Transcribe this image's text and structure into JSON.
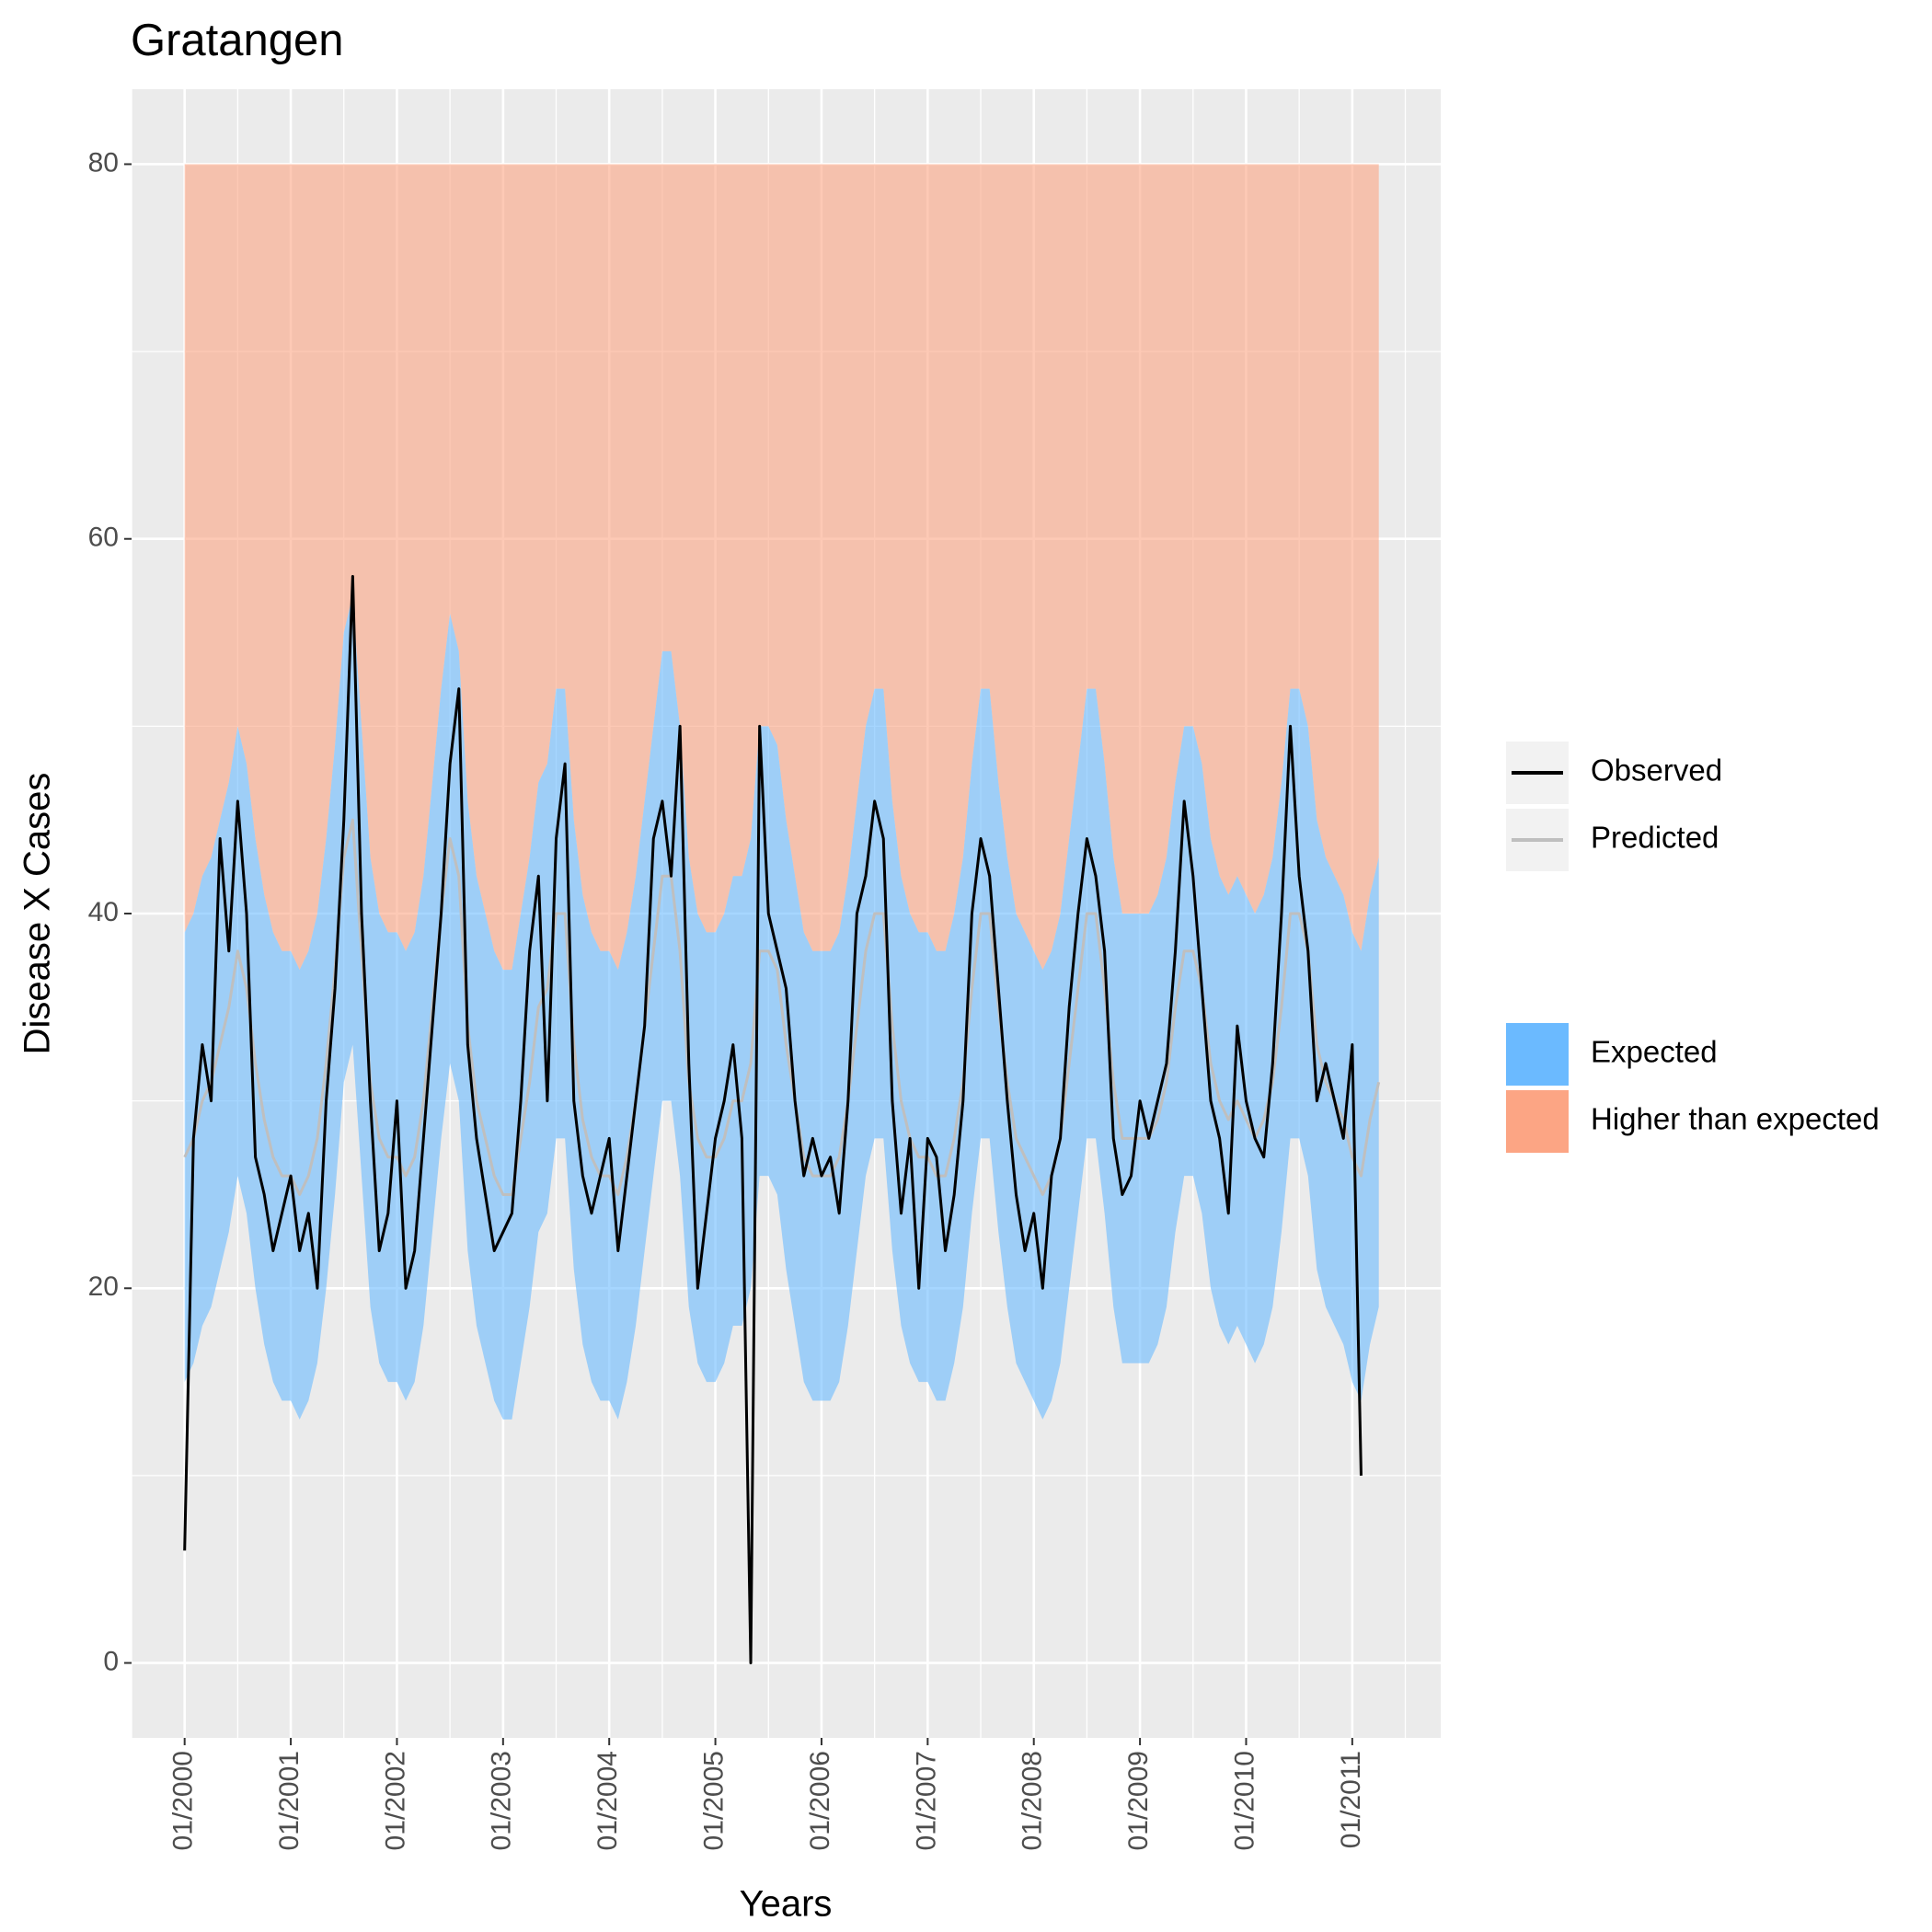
{
  "chart_data": {
    "type": "line",
    "title": "Gratangen",
    "xlabel": "Years",
    "ylabel": "Disease X Cases",
    "x": [
      "2000-01",
      "2000-02",
      "2000-03",
      "2000-04",
      "2000-05",
      "2000-06",
      "2000-07",
      "2000-08",
      "2000-09",
      "2000-10",
      "2000-11",
      "2000-12",
      "2001-01",
      "2001-02",
      "2001-03",
      "2001-04",
      "2001-05",
      "2001-06",
      "2001-07",
      "2001-08",
      "2001-09",
      "2001-10",
      "2001-11",
      "2001-12",
      "2002-01",
      "2002-02",
      "2002-03",
      "2002-04",
      "2002-05",
      "2002-06",
      "2002-07",
      "2002-08",
      "2002-09",
      "2002-10",
      "2002-11",
      "2002-12",
      "2003-01",
      "2003-02",
      "2003-03",
      "2003-04",
      "2003-05",
      "2003-06",
      "2003-07",
      "2003-08",
      "2003-09",
      "2003-10",
      "2003-11",
      "2003-12",
      "2004-01",
      "2004-02",
      "2004-03",
      "2004-04",
      "2004-05",
      "2004-06",
      "2004-07",
      "2004-08",
      "2004-09",
      "2004-10",
      "2004-11",
      "2004-12",
      "2005-01",
      "2005-02",
      "2005-03",
      "2005-04",
      "2005-05",
      "2005-06",
      "2005-07",
      "2005-08",
      "2005-09",
      "2005-10",
      "2005-11",
      "2005-12",
      "2006-01",
      "2006-02",
      "2006-03",
      "2006-04",
      "2006-05",
      "2006-06",
      "2006-07",
      "2006-08",
      "2006-09",
      "2006-10",
      "2006-11",
      "2006-12",
      "2007-01",
      "2007-02",
      "2007-03",
      "2007-04",
      "2007-05",
      "2007-06",
      "2007-07",
      "2007-08",
      "2007-09",
      "2007-10",
      "2007-11",
      "2007-12",
      "2008-01",
      "2008-02",
      "2008-03",
      "2008-04",
      "2008-05",
      "2008-06",
      "2008-07",
      "2008-08",
      "2008-09",
      "2008-10",
      "2008-11",
      "2008-12",
      "2009-01",
      "2009-02",
      "2009-03",
      "2009-04",
      "2009-05",
      "2009-06",
      "2009-07",
      "2009-08",
      "2009-09",
      "2009-10",
      "2009-11",
      "2009-12",
      "2010-01",
      "2010-02",
      "2010-03",
      "2010-04",
      "2010-05",
      "2010-06",
      "2010-07",
      "2010-08",
      "2010-09",
      "2010-10",
      "2010-11",
      "2010-12",
      "2011-01",
      "2011-02",
      "2011-03",
      "2011-04"
    ],
    "series": [
      {
        "name": "Observed",
        "color": "#000000",
        "values": [
          6,
          28,
          33,
          30,
          44,
          38,
          46,
          40,
          27,
          25,
          22,
          24,
          26,
          22,
          24,
          20,
          30,
          36,
          45,
          58,
          40,
          30,
          22,
          24,
          30,
          20,
          22,
          28,
          34,
          40,
          48,
          52,
          33,
          28,
          25,
          22,
          23,
          24,
          30,
          38,
          42,
          30,
          44,
          48,
          30,
          26,
          24,
          26,
          28,
          22,
          26,
          30,
          34,
          44,
          46,
          42,
          50,
          32,
          20,
          24,
          28,
          30,
          33,
          28,
          0,
          50,
          40,
          38,
          36,
          30,
          26,
          28,
          26,
          27,
          24,
          30,
          40,
          42,
          46,
          44,
          30,
          24,
          28,
          20,
          28,
          27,
          22,
          25,
          30,
          40,
          44,
          42,
          36,
          30,
          25,
          22,
          24,
          20,
          26,
          28,
          35,
          40,
          44,
          42,
          38,
          28,
          25,
          26,
          30,
          28,
          30,
          32,
          38,
          46,
          42,
          36,
          30,
          28,
          24,
          34,
          30,
          28,
          27,
          32,
          40,
          50,
          42,
          38,
          30,
          32,
          30,
          28,
          33,
          10,
          null,
          null
        ]
      },
      {
        "name": "Predicted",
        "color": "#bfbfbf",
        "values": [
          27,
          28,
          30,
          31,
          33,
          35,
          38,
          36,
          32,
          29,
          27,
          26,
          26,
          25,
          26,
          28,
          32,
          37,
          43,
          45,
          38,
          31,
          28,
          27,
          27,
          26,
          27,
          30,
          35,
          40,
          44,
          42,
          34,
          30,
          28,
          26,
          25,
          25,
          28,
          31,
          35,
          36,
          40,
          40,
          33,
          29,
          27,
          26,
          26,
          25,
          27,
          30,
          34,
          38,
          42,
          42,
          38,
          31,
          28,
          27,
          27,
          28,
          30,
          30,
          32,
          38,
          38,
          37,
          33,
          30,
          27,
          26,
          26,
          26,
          27,
          30,
          34,
          38,
          40,
          40,
          34,
          30,
          28,
          27,
          27,
          26,
          26,
          28,
          31,
          36,
          40,
          40,
          35,
          31,
          28,
          27,
          26,
          25,
          26,
          28,
          32,
          36,
          40,
          40,
          36,
          31,
          28,
          28,
          28,
          28,
          29,
          31,
          35,
          38,
          38,
          36,
          32,
          30,
          29,
          30,
          29,
          28,
          29,
          31,
          35,
          40,
          40,
          38,
          33,
          31,
          30,
          29,
          27,
          26,
          29,
          31
        ]
      },
      {
        "name": "Expected",
        "color": "#6bbaff",
        "lower": [
          15,
          16,
          18,
          19,
          21,
          23,
          26,
          24,
          20,
          17,
          15,
          14,
          14,
          13,
          14,
          16,
          20,
          25,
          31,
          33,
          26,
          19,
          16,
          15,
          15,
          14,
          15,
          18,
          23,
          28,
          32,
          30,
          22,
          18,
          16,
          14,
          13,
          13,
          16,
          19,
          23,
          24,
          28,
          28,
          21,
          17,
          15,
          14,
          14,
          13,
          15,
          18,
          22,
          26,
          30,
          30,
          26,
          19,
          16,
          15,
          15,
          16,
          18,
          18,
          20,
          26,
          26,
          25,
          21,
          18,
          15,
          14,
          14,
          14,
          15,
          18,
          22,
          26,
          28,
          28,
          22,
          18,
          16,
          15,
          15,
          14,
          14,
          16,
          19,
          24,
          28,
          28,
          23,
          19,
          16,
          15,
          14,
          13,
          14,
          16,
          20,
          24,
          28,
          28,
          24,
          19,
          16,
          16,
          16,
          16,
          17,
          19,
          23,
          26,
          26,
          24,
          20,
          18,
          17,
          18,
          17,
          16,
          17,
          19,
          23,
          28,
          28,
          26,
          21,
          19,
          18,
          17,
          15,
          14,
          17,
          19
        ],
        "upper": [
          39,
          40,
          42,
          43,
          45,
          47,
          50,
          48,
          44,
          41,
          39,
          38,
          38,
          37,
          38,
          40,
          44,
          49,
          55,
          57,
          50,
          43,
          40,
          39,
          39,
          38,
          39,
          42,
          47,
          52,
          56,
          54,
          46,
          42,
          40,
          38,
          37,
          37,
          40,
          43,
          47,
          48,
          52,
          52,
          45,
          41,
          39,
          38,
          38,
          37,
          39,
          42,
          46,
          50,
          54,
          54,
          50,
          43,
          40,
          39,
          39,
          40,
          42,
          42,
          44,
          50,
          50,
          49,
          45,
          42,
          39,
          38,
          38,
          38,
          39,
          42,
          46,
          50,
          52,
          52,
          46,
          42,
          40,
          39,
          39,
          38,
          38,
          40,
          43,
          48,
          52,
          52,
          47,
          43,
          40,
          39,
          38,
          37,
          38,
          40,
          44,
          48,
          52,
          52,
          48,
          43,
          40,
          40,
          40,
          40,
          41,
          43,
          47,
          50,
          50,
          48,
          44,
          42,
          41,
          42,
          41,
          40,
          41,
          43,
          47,
          52,
          52,
          50,
          45,
          43,
          42,
          41,
          39,
          38,
          41,
          43
        ]
      },
      {
        "name": "Higher than expected",
        "color": "#fca584",
        "ceiling": 80
      }
    ],
    "xlim": [
      "1999-07",
      "2011-11"
    ],
    "xticks": [
      {
        "value": "2000-01",
        "label": "01/2000"
      },
      {
        "value": "2001-01",
        "label": "01/2001"
      },
      {
        "value": "2002-01",
        "label": "01/2002"
      },
      {
        "value": "2003-01",
        "label": "01/2003"
      },
      {
        "value": "2004-01",
        "label": "01/2004"
      },
      {
        "value": "2005-01",
        "label": "01/2005"
      },
      {
        "value": "2006-01",
        "label": "01/2006"
      },
      {
        "value": "2007-01",
        "label": "01/2007"
      },
      {
        "value": "2008-01",
        "label": "01/2008"
      },
      {
        "value": "2009-01",
        "label": "01/2009"
      },
      {
        "value": "2010-01",
        "label": "01/2010"
      },
      {
        "value": "2011-01",
        "label": "01/2011"
      }
    ],
    "ylim": [
      -4,
      84
    ],
    "yticks": [
      0,
      20,
      40,
      60,
      80
    ],
    "grid": true,
    "legend": "right"
  }
}
